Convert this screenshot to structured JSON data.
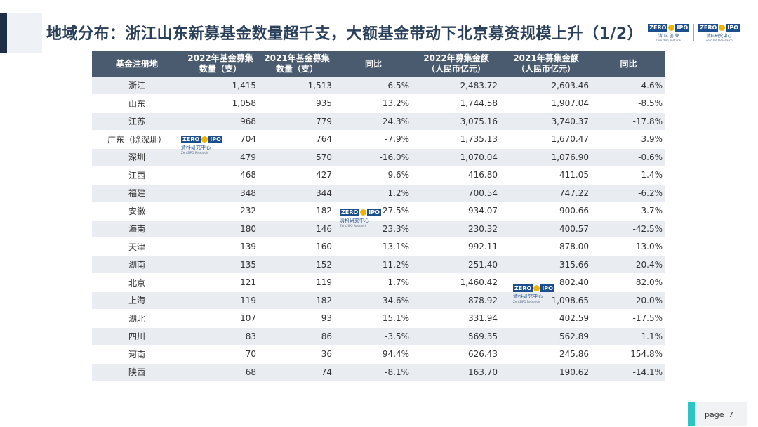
{
  "title": "地域分布：浙江山东新募基金数量超千支，大额基金带动下北京募资规模上升（1/2）",
  "logos": {
    "left": {
      "mark_left": "ZERO",
      "mark_right": "IPO",
      "cn": "清 科 创 业",
      "en": "Zero2IPO Ventures"
    },
    "right": {
      "mark_left": "ZERO",
      "mark_right": "IPO",
      "cn": "清科研究中心",
      "en": "Zero2IPO Research"
    }
  },
  "watermark": {
    "mark_left": "ZERO",
    "mark_right": "IPO",
    "cn": "清科研究中心",
    "en": "Zero2IPO Research"
  },
  "table": {
    "headers": [
      "基金注册地",
      "2022年基金募集\n数量（支）",
      "2021年基金募集\n数量（支）",
      "同比",
      "2022年募集金额\n（人民币亿元）",
      "2021年募集金额\n（人民币亿元）",
      "同比"
    ],
    "rows": [
      [
        "浙江",
        "1,415",
        "1,513",
        "-6.5%",
        "2,483.72",
        "2,603.46",
        "-4.6%"
      ],
      [
        "山东",
        "1,058",
        "935",
        "13.2%",
        "1,744.58",
        "1,907.04",
        "-8.5%"
      ],
      [
        "江苏",
        "968",
        "779",
        "24.3%",
        "3,075.16",
        "3,740.37",
        "-17.8%"
      ],
      [
        "广东（除深圳）",
        "704",
        "764",
        "-7.9%",
        "1,735.13",
        "1,670.47",
        "3.9%"
      ],
      [
        "深圳",
        "479",
        "570",
        "-16.0%",
        "1,070.04",
        "1,076.90",
        "-0.6%"
      ],
      [
        "江西",
        "468",
        "427",
        "9.6%",
        "416.80",
        "411.05",
        "1.4%"
      ],
      [
        "福建",
        "348",
        "344",
        "1.2%",
        "700.54",
        "747.22",
        "-6.2%"
      ],
      [
        "安徽",
        "232",
        "182",
        "27.5%",
        "934.07",
        "900.66",
        "3.7%"
      ],
      [
        "海南",
        "180",
        "146",
        "23.3%",
        "230.32",
        "400.57",
        "-42.5%"
      ],
      [
        "天津",
        "139",
        "160",
        "-13.1%",
        "992.11",
        "878.00",
        "13.0%"
      ],
      [
        "湖南",
        "135",
        "152",
        "-11.2%",
        "251.40",
        "315.66",
        "-20.4%"
      ],
      [
        "北京",
        "121",
        "119",
        "1.7%",
        "1,460.42",
        "802.40",
        "82.0%"
      ],
      [
        "上海",
        "119",
        "182",
        "-34.6%",
        "878.92",
        "1,098.65",
        "-20.0%"
      ],
      [
        "湖北",
        "107",
        "93",
        "15.1%",
        "331.94",
        "402.59",
        "-17.5%"
      ],
      [
        "四川",
        "83",
        "86",
        "-3.5%",
        "569.35",
        "562.89",
        "1.1%"
      ],
      [
        "河南",
        "70",
        "36",
        "94.4%",
        "626.43",
        "245.86",
        "154.8%"
      ],
      [
        "陕西",
        "68",
        "74",
        "-8.1%",
        "163.70",
        "190.62",
        "-14.1%"
      ]
    ]
  },
  "footer": {
    "page_label": "page",
    "page_number": "7"
  },
  "colors": {
    "header_bg": "#4b5b6f",
    "row_alt_bg": "#e9ecf1",
    "title": "#2a3f5a",
    "accent": "#2ec4c4"
  }
}
